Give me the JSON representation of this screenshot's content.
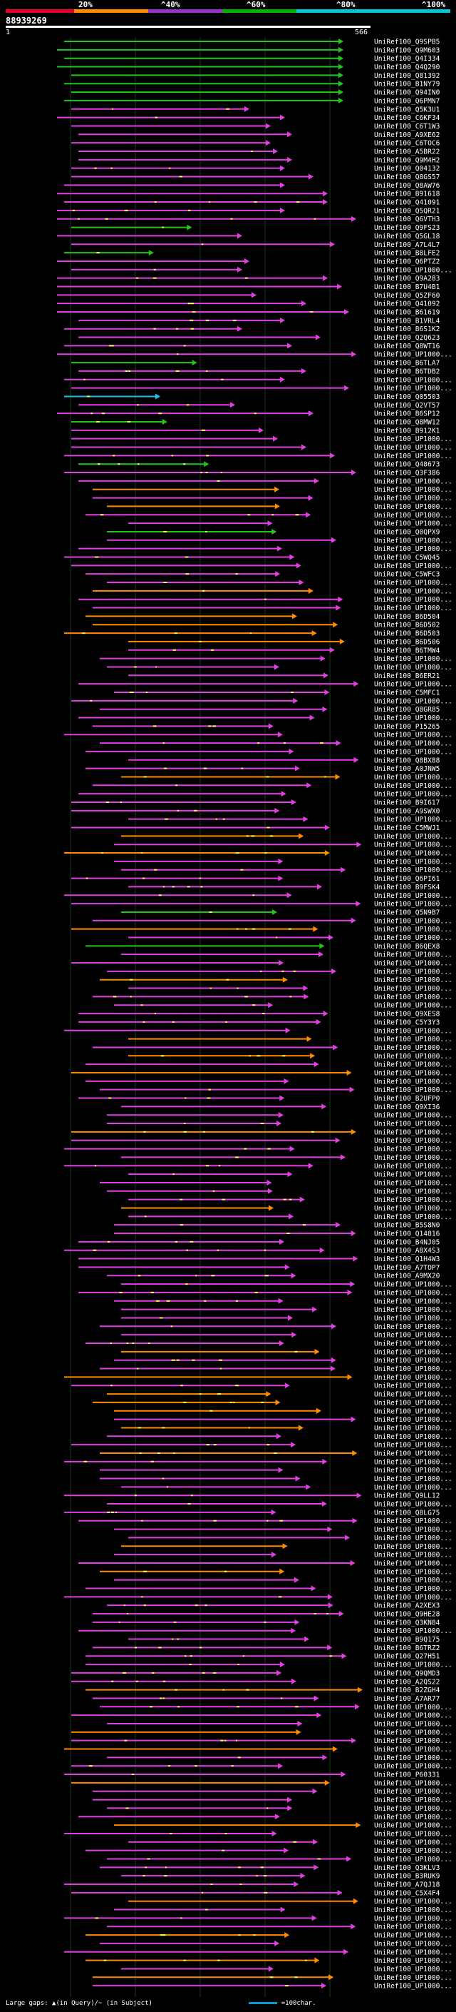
{
  "header": {
    "query_id": "88939269",
    "range_start": "1",
    "range_end": "566",
    "percent_scale": [
      {
        "label": "20%",
        "color": "#e8002a"
      },
      {
        "label": "^40%",
        "color": "#ff8c00"
      },
      {
        "label": "^60%",
        "color": "#9b30d0"
      },
      {
        "label": "^80%",
        "color": "#00b000"
      },
      {
        "label": "^100%",
        "color": "#00c8d8"
      }
    ]
  },
  "colors": {
    "green": "#22c51a",
    "magenta": "#e040e0",
    "orange": "#ff8c00",
    "cyan": "#22c0e8",
    "gap": "#ffff66"
  },
  "hits": [
    {
      "label": "UniRef100_Q9SPB5",
      "color": "green"
    },
    {
      "label": "UniRef100_Q9M603",
      "color": "green"
    },
    {
      "label": "UniRef100_Q4I334",
      "color": "green"
    },
    {
      "label": "UniRef100_Q4Q290",
      "color": "green"
    },
    {
      "label": "UniRef100_Q81392",
      "color": "green"
    },
    {
      "label": "UniRef100_B1NY79",
      "color": "green"
    },
    {
      "label": "UniRef100_Q94IN0",
      "color": "green"
    },
    {
      "label": "UniRef100_Q6PMN7",
      "color": "green"
    },
    {
      "label": "UniRef100_Q5K3U1",
      "color": "magenta"
    },
    {
      "label": "UniRef100_C6KF34",
      "color": "magenta"
    },
    {
      "label": "UniRef100_C6T1W3",
      "color": "magenta"
    },
    {
      "label": "UniRef100_A9XE62",
      "color": "magenta"
    },
    {
      "label": "UniRef100_C6TOC6",
      "color": "magenta"
    },
    {
      "label": "UniRef100_A5BR22",
      "color": "magenta"
    },
    {
      "label": "UniRef100_Q9M4H2",
      "color": "magenta"
    },
    {
      "label": "UniRef100_Q04132",
      "color": "magenta"
    },
    {
      "label": "UniRef100_Q8GS57",
      "color": "magenta"
    },
    {
      "label": "UniRef100_Q8AW76",
      "color": "magenta"
    },
    {
      "label": "UniRef100_B91618",
      "color": "magenta"
    },
    {
      "label": "UniRef100_Q41091",
      "color": "magenta"
    },
    {
      "label": "UniRef100_Q5QR21",
      "color": "magenta"
    },
    {
      "label": "UniRef100_Q6VTH3",
      "color": "magenta"
    },
    {
      "label": "UniRef100_Q9FS23",
      "color": "green"
    },
    {
      "label": "UniRef100_Q5GL18",
      "color": "magenta"
    },
    {
      "label": "UniRef100_A7L4L7",
      "color": "magenta"
    },
    {
      "label": "UniRef100_B8LFE2",
      "color": "green"
    },
    {
      "label": "UniRef100_Q6PTZ2",
      "color": "magenta"
    },
    {
      "label": "UniRef100_UP1000...",
      "color": "magenta"
    },
    {
      "label": "UniRef100_Q9A283",
      "color": "magenta"
    },
    {
      "label": "UniRef100_B7U4B1",
      "color": "magenta"
    },
    {
      "label": "UniRef100_Q5ZF60",
      "color": "magenta"
    },
    {
      "label": "UniRef100_Q41092",
      "color": "magenta"
    },
    {
      "label": "UniRef100_B61619",
      "color": "magenta"
    },
    {
      "label": "UniRef100_B1VRL4",
      "color": "magenta"
    },
    {
      "label": "UniRef100_B6S1K2",
      "color": "magenta"
    },
    {
      "label": "UniRef100_Q2Q623",
      "color": "magenta"
    },
    {
      "label": "UniRef100_Q8WT16",
      "color": "magenta"
    },
    {
      "label": "UniRef100_UP1000...",
      "color": "magenta"
    },
    {
      "label": "UniRef100_B6TLA7",
      "color": "green"
    },
    {
      "label": "UniRef100_B6TDB2",
      "color": "magenta"
    },
    {
      "label": "UniRef100_UP1000...",
      "color": "magenta"
    },
    {
      "label": "UniRef100_UP1000...",
      "color": "magenta"
    },
    {
      "label": "UniRef100_Q05503",
      "color": "cyan"
    },
    {
      "label": "UniRef100_Q2VT57",
      "color": "magenta"
    },
    {
      "label": "UniRef100_B6SP12",
      "color": "magenta"
    },
    {
      "label": "UniRef100_Q8MW12",
      "color": "green"
    },
    {
      "label": "UniRef100_B912K1",
      "color": "magenta"
    },
    {
      "label": "UniRef100_UP1000...",
      "color": "magenta"
    },
    {
      "label": "UniRef100_UP1000...",
      "color": "magenta"
    },
    {
      "label": "UniRef100_UP1000...",
      "color": "magenta"
    },
    {
      "label": "UniRef100_Q48673",
      "color": "green"
    },
    {
      "label": "UniRef100_Q3F386",
      "color": "magenta"
    },
    {
      "label": "UniRef100_UP1000...",
      "color": "magenta"
    },
    {
      "label": "UniRef100_UP1000...",
      "color": "orange"
    },
    {
      "label": "UniRef100_UP1000...",
      "color": "magenta"
    },
    {
      "label": "UniRef100_UP1000...",
      "color": "orange"
    },
    {
      "label": "UniRef100_UP1000...",
      "color": "magenta"
    },
    {
      "label": "UniRef100_UP1000...",
      "color": "magenta"
    },
    {
      "label": "UniRef100_Q0QPX9",
      "color": "green"
    },
    {
      "label": "UniRef100_UP1000...",
      "color": "magenta"
    },
    {
      "label": "UniRef100_UP1000...",
      "color": "magenta"
    },
    {
      "label": "UniRef100_C5WQ45",
      "color": "magenta"
    },
    {
      "label": "UniRef100_UP1000...",
      "color": "magenta"
    },
    {
      "label": "UniRef100_C5WFC3",
      "color": "magenta"
    },
    {
      "label": "UniRef100_UP1000...",
      "color": "magenta"
    },
    {
      "label": "UniRef100_UP1000...",
      "color": "orange"
    },
    {
      "label": "UniRef100_UP1000...",
      "color": "magenta"
    },
    {
      "label": "UniRef100_UP1000...",
      "color": "magenta"
    },
    {
      "label": "UniRef100_B6D504",
      "color": "orange"
    },
    {
      "label": "UniRef100_B6D502",
      "color": "orange"
    },
    {
      "label": "UniRef100_B6D503",
      "color": "orange"
    },
    {
      "label": "UniRef100_B6D506",
      "color": "orange"
    },
    {
      "label": "UniRef100_B6TMW4",
      "color": "magenta"
    },
    {
      "label": "UniRef100_UP1000...",
      "color": "magenta"
    },
    {
      "label": "UniRef100_UP1000...",
      "color": "magenta"
    },
    {
      "label": "UniRef100_B6ER21",
      "color": "magenta"
    },
    {
      "label": "UniRef100_UP1000...",
      "color": "magenta"
    },
    {
      "label": "UniRef100_C5MFC1",
      "color": "magenta"
    },
    {
      "label": "UniRef100_UP1000...",
      "color": "magenta"
    },
    {
      "label": "UniRef100_Q8GR85",
      "color": "magenta"
    },
    {
      "label": "UniRef100_UP1000...",
      "color": "magenta"
    },
    {
      "label": "UniRef100_P15265",
      "color": "magenta"
    },
    {
      "label": "UniRef100_UP1000...",
      "color": "magenta"
    },
    {
      "label": "UniRef100_UP1000...",
      "color": "magenta"
    },
    {
      "label": "UniRef100_UP1000...",
      "color": "magenta"
    },
    {
      "label": "UniRef100_Q8BX88",
      "color": "magenta"
    },
    {
      "label": "UniRef100_A0JNW5",
      "color": "magenta"
    },
    {
      "label": "UniRef100_UP1000...",
      "color": "orange"
    },
    {
      "label": "UniRef100_UP1000...",
      "color": "magenta"
    },
    {
      "label": "UniRef100_UP1000...",
      "color": "magenta"
    },
    {
      "label": "UniRef100_B9I617",
      "color": "magenta"
    },
    {
      "label": "UniRef100_A9SWX0",
      "color": "magenta"
    },
    {
      "label": "UniRef100_UP1000...",
      "color": "magenta"
    },
    {
      "label": "UniRef100_C5MWJ1",
      "color": "magenta"
    },
    {
      "label": "UniRef100_UP1000...",
      "color": "orange"
    },
    {
      "label": "UniRef100_UP1000...",
      "color": "magenta"
    },
    {
      "label": "UniRef100_UP1000...",
      "color": "orange"
    },
    {
      "label": "UniRef100_UP1000...",
      "color": "magenta"
    },
    {
      "label": "UniRef100_UP1000...",
      "color": "magenta"
    },
    {
      "label": "UniRef100_Q6PI61",
      "color": "magenta"
    },
    {
      "label": "UniRef100_B9FSK4",
      "color": "magenta"
    },
    {
      "label": "UniRef100_UP1000...",
      "color": "magenta"
    },
    {
      "label": "UniRef100_UP1000...",
      "color": "magenta"
    },
    {
      "label": "UniRef100_Q5N9B7",
      "color": "green"
    },
    {
      "label": "UniRef100_UP1000...",
      "color": "magenta"
    },
    {
      "label": "UniRef100_UP1000...",
      "color": "orange"
    },
    {
      "label": "UniRef100_UP1000...",
      "color": "magenta"
    },
    {
      "label": "UniRef100_B6QEX8",
      "color": "green"
    },
    {
      "label": "UniRef100_UP1000...",
      "color": "magenta"
    },
    {
      "label": "UniRef100_UP1000...",
      "color": "magenta"
    },
    {
      "label": "UniRef100_UP1000...",
      "color": "magenta"
    },
    {
      "label": "UniRef100_UP1000...",
      "color": "orange"
    },
    {
      "label": "UniRef100_UP1000...",
      "color": "magenta"
    },
    {
      "label": "UniRef100_UP1000...",
      "color": "magenta"
    },
    {
      "label": "UniRef100_UP1000...",
      "color": "magenta"
    },
    {
      "label": "UniRef100_Q9XES8",
      "color": "magenta"
    },
    {
      "label": "UniRef100_C5Y3Y3",
      "color": "magenta"
    },
    {
      "label": "UniRef100_UP1000...",
      "color": "magenta"
    },
    {
      "label": "UniRef100_UP1000...",
      "color": "orange"
    },
    {
      "label": "UniRef100_UP1000...",
      "color": "magenta"
    },
    {
      "label": "UniRef100_UP1000...",
      "color": "orange"
    },
    {
      "label": "UniRef100_UP1000...",
      "color": "magenta"
    },
    {
      "label": "UniRef100_UP1000...",
      "color": "orange"
    },
    {
      "label": "UniRef100_UP1000...",
      "color": "magenta"
    },
    {
      "label": "UniRef100_UP1000...",
      "color": "magenta"
    },
    {
      "label": "UniRef100_B2UFP0",
      "color": "magenta"
    },
    {
      "label": "UniRef100_Q9XI36",
      "color": "magenta"
    },
    {
      "label": "UniRef100_UP1000...",
      "color": "magenta"
    },
    {
      "label": "UniRef100_UP1000...",
      "color": "magenta"
    },
    {
      "label": "UniRef100_UP1000...",
      "color": "orange"
    },
    {
      "label": "UniRef100_UP1000...",
      "color": "magenta"
    },
    {
      "label": "UniRef100_UP1000...",
      "color": "magenta"
    },
    {
      "label": "UniRef100_UP1000...",
      "color": "magenta"
    },
    {
      "label": "UniRef100_UP1000...",
      "color": "magenta"
    },
    {
      "label": "UniRef100_UP1000...",
      "color": "magenta"
    },
    {
      "label": "UniRef100_UP1000...",
      "color": "magenta"
    },
    {
      "label": "UniRef100_UP1000...",
      "color": "magenta"
    },
    {
      "label": "UniRef100_UP1000...",
      "color": "magenta"
    },
    {
      "label": "UniRef100_UP1000...",
      "color": "orange"
    },
    {
      "label": "UniRef100_UP1000...",
      "color": "magenta"
    },
    {
      "label": "UniRef100_B5S8N0",
      "color": "magenta"
    },
    {
      "label": "UniRef100_Q14816",
      "color": "magenta"
    },
    {
      "label": "UniRef100_B4NJ05",
      "color": "magenta"
    },
    {
      "label": "UniRef100_A8X4S3",
      "color": "magenta"
    },
    {
      "label": "UniRef100_Q1H4W3",
      "color": "magenta"
    },
    {
      "label": "UniRef100_A7TOP7",
      "color": "magenta"
    },
    {
      "label": "UniRef100_A9MX20",
      "color": "magenta"
    },
    {
      "label": "UniRef100_UP1000...",
      "color": "magenta"
    },
    {
      "label": "UniRef100_UP1000...",
      "color": "magenta"
    },
    {
      "label": "UniRef100_UP1000...",
      "color": "magenta"
    },
    {
      "label": "UniRef100_UP1000...",
      "color": "magenta"
    },
    {
      "label": "UniRef100_UP1000...",
      "color": "magenta"
    },
    {
      "label": "UniRef100_UP1000...",
      "color": "magenta"
    },
    {
      "label": "UniRef100_UP1000...",
      "color": "magenta"
    },
    {
      "label": "UniRef100_UP1000...",
      "color": "magenta"
    },
    {
      "label": "UniRef100_UP1000...",
      "color": "orange"
    },
    {
      "label": "UniRef100_UP1000...",
      "color": "magenta"
    },
    {
      "label": "UniRef100_UP1000...",
      "color": "magenta"
    },
    {
      "label": "UniRef100_UP1000...",
      "color": "orange"
    },
    {
      "label": "UniRef100_UP1000...",
      "color": "magenta"
    },
    {
      "label": "UniRef100_UP1000...",
      "color": "orange"
    },
    {
      "label": "UniRef100_UP1000...",
      "color": "orange"
    },
    {
      "label": "UniRef100_UP1000...",
      "color": "orange"
    },
    {
      "label": "UniRef100_UP1000...",
      "color": "magenta"
    },
    {
      "label": "UniRef100_UP1000...",
      "color": "orange"
    },
    {
      "label": "UniRef100_UP1000...",
      "color": "magenta"
    },
    {
      "label": "UniRef100_UP1000...",
      "color": "magenta"
    },
    {
      "label": "UniRef100_UP1000...",
      "color": "orange"
    },
    {
      "label": "UniRef100_UP1000...",
      "color": "magenta"
    },
    {
      "label": "UniRef100_UP1000...",
      "color": "magenta"
    },
    {
      "label": "UniRef100_UP1000...",
      "color": "magenta"
    },
    {
      "label": "UniRef100_UP1000...",
      "color": "magenta"
    },
    {
      "label": "UniRef100_Q9LL12",
      "color": "magenta"
    },
    {
      "label": "UniRef100_UP1000...",
      "color": "magenta"
    },
    {
      "label": "UniRef100_Q8LG75",
      "color": "magenta"
    },
    {
      "label": "UniRef100_UP1000...",
      "color": "magenta"
    },
    {
      "label": "UniRef100_UP1000...",
      "color": "magenta"
    },
    {
      "label": "UniRef100_UP1000...",
      "color": "magenta"
    },
    {
      "label": "UniRef100_UP1000...",
      "color": "orange"
    },
    {
      "label": "UniRef100_UP1000...",
      "color": "magenta"
    },
    {
      "label": "UniRef100_UP1000...",
      "color": "magenta"
    },
    {
      "label": "UniRef100_UP1000...",
      "color": "orange"
    },
    {
      "label": "UniRef100_UP1000...",
      "color": "magenta"
    },
    {
      "label": "UniRef100_UP1000...",
      "color": "magenta"
    },
    {
      "label": "UniRef100_UP1000...",
      "color": "magenta"
    },
    {
      "label": "UniRef100_A2XEX3",
      "color": "magenta"
    },
    {
      "label": "UniRef100_Q9HE28",
      "color": "magenta"
    },
    {
      "label": "UniRef100_Q3KN84",
      "color": "magenta"
    },
    {
      "label": "UniRef100_UP1000...",
      "color": "magenta"
    },
    {
      "label": "UniRef100_B9Q175",
      "color": "magenta"
    },
    {
      "label": "UniRef100_B6TRZ2",
      "color": "magenta"
    },
    {
      "label": "UniRef100_Q27H51",
      "color": "magenta"
    },
    {
      "label": "UniRef100_UP1000...",
      "color": "magenta"
    },
    {
      "label": "UniRef100_Q9QMD3",
      "color": "magenta"
    },
    {
      "label": "UniRef100_A2QS22",
      "color": "magenta"
    },
    {
      "label": "UniRef100_B2ZGH4",
      "color": "orange"
    },
    {
      "label": "UniRef100_A7AR77",
      "color": "magenta"
    },
    {
      "label": "UniRef100_UP1000...",
      "color": "magenta"
    },
    {
      "label": "UniRef100_UP1000...",
      "color": "magenta"
    },
    {
      "label": "UniRef100_UP1000...",
      "color": "magenta"
    },
    {
      "label": "UniRef100_UP1000...",
      "color": "orange"
    },
    {
      "label": "UniRef100_UP1000...",
      "color": "magenta"
    },
    {
      "label": "UniRef100_UP1000...",
      "color": "orange"
    },
    {
      "label": "UniRef100_UP1000...",
      "color": "magenta"
    },
    {
      "label": "UniRef100_UP1000...",
      "color": "magenta"
    },
    {
      "label": "UniRef100_P60331",
      "color": "magenta"
    },
    {
      "label": "UniRef100_UP1000...",
      "color": "orange"
    },
    {
      "label": "UniRef100_UP1000...",
      "color": "magenta"
    },
    {
      "label": "UniRef100_UP1000...",
      "color": "magenta"
    },
    {
      "label": "UniRef100_UP1000...",
      "color": "magenta"
    },
    {
      "label": "UniRef100_UP1000...",
      "color": "magenta"
    },
    {
      "label": "UniRef100_UP1000...",
      "color": "orange"
    },
    {
      "label": "UniRef100_UP1000...",
      "color": "magenta"
    },
    {
      "label": "UniRef100_UP1000...",
      "color": "magenta"
    },
    {
      "label": "UniRef100_UP1000...",
      "color": "magenta"
    },
    {
      "label": "UniRef100_UP1000...",
      "color": "magenta"
    },
    {
      "label": "UniRef100_Q3KLV3",
      "color": "magenta"
    },
    {
      "label": "UniRef100_B3RUK9",
      "color": "magenta"
    },
    {
      "label": "UniRef100_A7QJ18",
      "color": "magenta"
    },
    {
      "label": "UniRef100_C5X4F4",
      "color": "magenta"
    },
    {
      "label": "UniRef100_UP1000...",
      "color": "orange"
    },
    {
      "label": "UniRef100_UP1000...",
      "color": "magenta"
    },
    {
      "label": "UniRef100_UP1000...",
      "color": "magenta"
    },
    {
      "label": "UniRef100_UP1000...",
      "color": "magenta"
    },
    {
      "label": "UniRef100_UP1000...",
      "color": "orange"
    },
    {
      "label": "UniRef100_UP1000...",
      "color": "magenta"
    },
    {
      "label": "UniRef100_UP1000...",
      "color": "magenta"
    },
    {
      "label": "UniRef100_UP1000...",
      "color": "orange"
    },
    {
      "label": "UniRef100_UP1000...",
      "color": "magenta"
    },
    {
      "label": "UniRef100_UP1000...",
      "color": "orange"
    },
    {
      "label": "UniRef100_UP1000...",
      "color": "magenta"
    }
  ],
  "legend": {
    "text": "Large gaps: ▲(in Query)/~ (in Subject)",
    "scale_text": "=100char."
  }
}
